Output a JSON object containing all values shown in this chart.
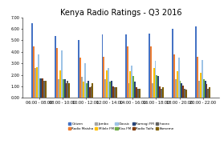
{
  "title": "Kenya Radio Ratings - Q3 2016",
  "categories": [
    "06:00 - 08:00",
    "08:00 - 10:00",
    "10:00 - 12:00",
    "12:00 - 14:00",
    "14:00 - 16:00",
    "16:00 - 18:00",
    "18:00 - 20:00",
    "20:00 - 22:00"
  ],
  "series_order": [
    "Citizen",
    "Radio Maisha",
    "Jambo",
    "Milele FM",
    "Classic",
    "Kiss FM",
    "Ramogi FM",
    "Radio Taifa",
    "Inooro",
    "Kameme"
  ],
  "series": {
    "Citizen": [
      6.5,
      5.4,
      5.0,
      5.5,
      5.5,
      5.6,
      6.0,
      6.2
    ],
    "Radio Maisha": [
      4.5,
      4.3,
      3.5,
      3.6,
      4.5,
      4.5,
      3.8,
      3.6
    ],
    "Jambo": [
      2.6,
      1.6,
      1.8,
      1.6,
      1.3,
      1.3,
      1.6,
      1.5
    ],
    "Milele FM": [
      2.7,
      2.4,
      1.4,
      2.4,
      2.3,
      2.6,
      2.3,
      2.2
    ],
    "Classic": [
      3.8,
      4.1,
      3.0,
      2.6,
      2.8,
      3.2,
      3.5,
      3.3
    ],
    "Kiss FM": [
      1.7,
      1.6,
      1.3,
      1.4,
      1.9,
      2.0,
      1.5,
      1.6
    ],
    "Ramogi FM": [
      1.7,
      1.6,
      1.5,
      1.5,
      1.4,
      1.9,
      1.3,
      1.5
    ],
    "Radio Taifa": [
      1.7,
      1.3,
      0.9,
      1.0,
      0.9,
      1.0,
      1.1,
      1.2
    ],
    "Inooro": [
      1.5,
      1.5,
      1.0,
      0.9,
      0.8,
      0.8,
      0.8,
      0.8
    ],
    "Kameme": [
      1.5,
      1.3,
      1.3,
      0.9,
      0.8,
      0.9,
      0.7,
      0.9
    ]
  },
  "colors": {
    "Citizen": "#4472C4",
    "Radio Maisha": "#ED7D31",
    "Jambo": "#A5A5A5",
    "Milele FM": "#FFC000",
    "Classic": "#9DC3E6",
    "Kiss FM": "#70AD47",
    "Ramogi FM": "#264478",
    "Radio Taifa": "#833C0B",
    "Inooro": "#636363",
    "Kameme": "#806000"
  },
  "ylim": [
    0,
    7.0
  ],
  "yticks": [
    0.0,
    1.0,
    2.0,
    3.0,
    4.0,
    5.0,
    6.0,
    7.0
  ],
  "background": "#FFFFFF",
  "title_fontsize": 7,
  "tick_fontsize": 3.5,
  "legend_fontsize": 3.0
}
